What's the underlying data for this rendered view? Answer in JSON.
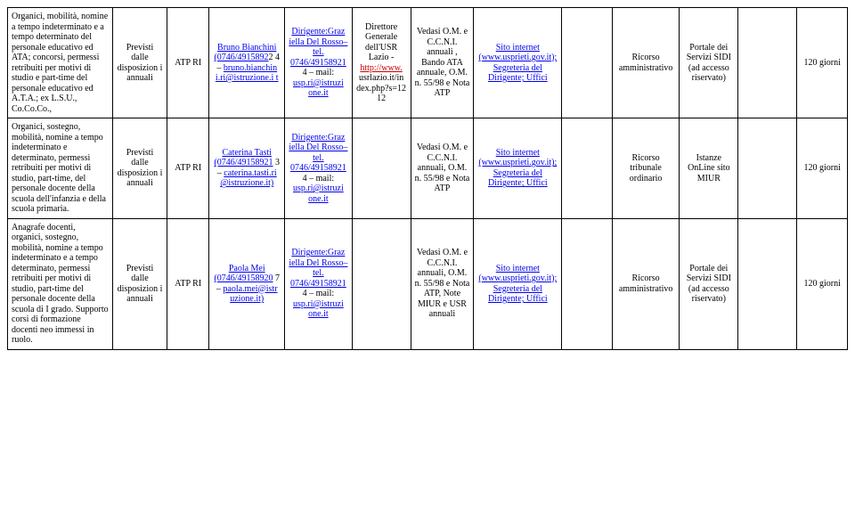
{
  "table": {
    "columns": 13,
    "rows": [
      {
        "c1": "Organici, mobilità, nomine a tempo indeterminato e a tempo determinato del personale educativo ed ATA; concorsi, permessi retribuiti per motivi di studio e part-time del personale educativo ed A.T.A.; ex L.S.U., Co.Co.Co.,",
        "c2": "Previsti dalle disposizion i annuali",
        "c3": "ATP RI",
        "c4_link1": "Bruno Bianchini (0746/4915892",
        "c4_plain": "2 4 – ",
        "c4_link2": "bruno.bianchin i.ri@istruzione.i t",
        "c5_link1": "Dirigente:Graz iella Del Rosso– tel. 0746/49158921",
        "c5_plain": " 4 – mail: ",
        "c5_link2": "usp.ri@istruzi one.it",
        "c6_pre": "Direttore Generale dell'USR Lazio - ",
        "c6_link": "http://www.",
        "c6_post": " usrlazio.it/in dex.php?s=12 12",
        "c7": "Vedasi O.M. e C.C.N.I. annuali , Bando ATA annuale, O.M. n. 55/98 e Nota ATP",
        "c8_link1": "Sito internet (www.usprieti.gov.it);",
        "c8_sp": " ",
        "c8_link2": "Segreteria del Dirigente;  Uffici",
        "c9": "",
        "c10": "Ricorso amministrativo",
        "c11": "Portale dei Servizi SIDI (ad accesso riservato)",
        "c12": "",
        "c13": "120 giorni"
      },
      {
        "c1": "Organici, sostegno, mobilità, nomine a tempo indeterminato e determinato, permessi retribuiti per motivi di studio, part-time, del personale docente della scuola dell'infanzia e della scuola primaria.",
        "c2": "Previsti dalle disposizion i annuali",
        "c3": "ATP RI",
        "c4_link1": "Caterina Tasti (0746/49158921",
        "c4_plain": " 3 – ",
        "c4_link2": "caterina.tasti.ri @istruzione.it)",
        "c5_link1": "Dirigente:Graz iella Del Rosso– tel. 0746/49158921",
        "c5_plain": " 4 – mail: ",
        "c5_link2": "usp.ri@istruzi one.it",
        "c6_pre": "",
        "c6_link": "",
        "c6_post": "",
        "c7": "Vedasi O.M. e C.C.N.I. annuali, O.M. n. 55/98 e Nota ATP",
        "c8_link1": "Sito internet (www.usprieti.gov.it);",
        "c8_sp": " ",
        "c8_link2": "Segreteria del Dirigente;  Uffici",
        "c9": "",
        "c10": "Ricorso tribunale ordinario",
        "c11": "Istanze OnLine sito MIUR",
        "c12": "",
        "c13": "120 giorni"
      },
      {
        "c1": "Anagrafe docenti, organici, sostegno, mobilità, nomine a tempo indeterminato e a tempo determinato, permessi retribuiti per motivi di studio, part-time del personale docente della scuola di I grado. Supporto corsi di formazione docenti neo immessi in ruolo.",
        "c2": "Previsti dalle disposizion i annuali",
        "c3": "ATP RI",
        "c4_link1": "Paola Mei (0746/49158920",
        "c4_plain": " 7 – ",
        "c4_link2": "paola.mei@istr uzione.it)",
        "c5_link1": "Dirigente:Graz iella Del Rosso– tel. 0746/49158921",
        "c5_plain": " 4 – mail: ",
        "c5_link2": "usp.ri@istruzi one.it",
        "c6_pre": "",
        "c6_link": "",
        "c6_post": "",
        "c7": "Vedasi O.M. e C.C.N.I. annuali, O.M. n. 55/98 e Nota ATP, Note MIUR e USR annuali",
        "c8_link1": "Sito internet (www.usprieti.gov.it);",
        "c8_sp": " ",
        "c8_link2": "Segreteria del Dirigente;  Uffici",
        "c9": "",
        "c10": "Ricorso amministrativo",
        "c11": "Portale dei Servizi SIDI (ad accesso riservato)",
        "c12": "",
        "c13": "120 giorni"
      }
    ]
  }
}
